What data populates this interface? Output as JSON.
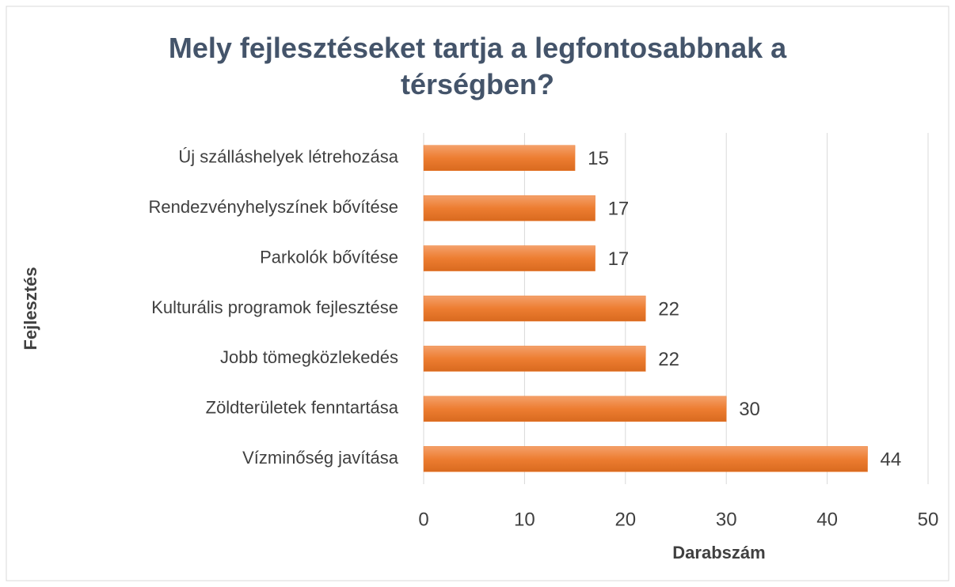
{
  "chart_data": {
    "type": "bar",
    "orientation": "horizontal",
    "title": "Mely fejlesztéseket tartja a legfontosabbnak a térségben?",
    "x_label": "Darabszám",
    "y_label": "Fejlesztés",
    "categories": [
      "Új szálláshelyek létrehozása",
      "Rendezvényhelyszínek bővítése",
      "Parkolók bővítése",
      "Kulturális programok fejlesztése",
      "Jobb tömegközlekedés",
      "Zöldterületek fenntartása",
      "Vízminőség javítása"
    ],
    "values": [
      15,
      17,
      17,
      22,
      22,
      30,
      44
    ],
    "color": "#ed7d31",
    "xlim": [
      0,
      50
    ],
    "xticks": [
      0,
      10,
      20,
      30,
      40,
      50
    ],
    "grid": true
  }
}
